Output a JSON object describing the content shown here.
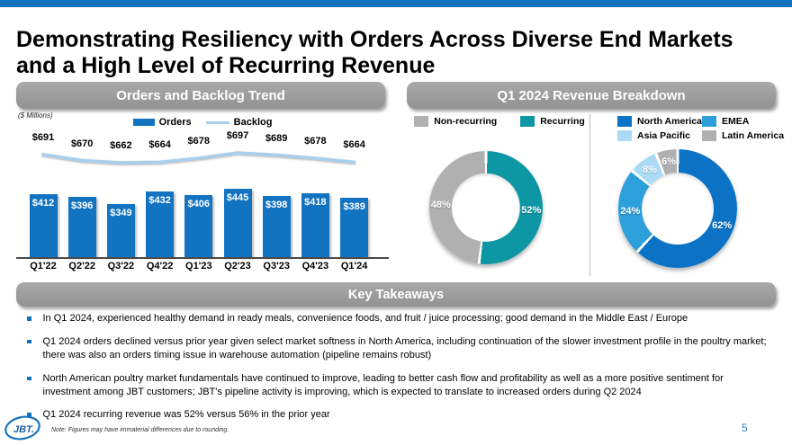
{
  "slide": {
    "title": "Demonstrating Resiliency with Orders Across Diverse End Markets and a High Level of Recurring Revenue",
    "page_number": "5",
    "footnote": "Note: Figures may have immaterial differences due to rounding.",
    "logo_text": "JBT.",
    "accent_color": "#1273c0"
  },
  "orders_panel": {
    "header": "Orders and Backlog Trend",
    "units_label": "($ Millions)",
    "legend": [
      {
        "label": "Orders",
        "type": "bar",
        "color": "#1273c0"
      },
      {
        "label": "Backlog",
        "type": "line",
        "color": "#a8d0ec"
      }
    ]
  },
  "revenue_panel": {
    "header": "Q1 2024 Revenue Breakdown",
    "legend_recurring": [
      {
        "label": "Non-recurring",
        "color": "#b0b0b0"
      },
      {
        "label": "Recurring",
        "color": "#0d96a3"
      }
    ],
    "legend_region": [
      {
        "label": "North America",
        "color": "#0b72c6"
      },
      {
        "label": "EMEA",
        "color": "#2d9fdb"
      },
      {
        "label": "Asia Pacific",
        "color": "#abdbf4"
      },
      {
        "label": "Latin America",
        "color": "#b0b0b0"
      }
    ]
  },
  "takeaways": {
    "header": "Key Takeaways",
    "bullets": [
      "In Q1 2024, experienced healthy demand in ready meals, convenience foods, and fruit / juice processing; good demand in the Middle East / Europe",
      "Q1 2024 orders declined versus prior year given select market softness in North America, including continuation of the slower investment profile in the poultry market; there was also an orders timing issue in warehouse automation (pipeline remains robust)",
      "North American poultry market fundamentals have continued to improve, leading to better cash flow and profitability as well as a more positive sentiment for investment among JBT customers; JBT's pipeline activity is improving, which is expected to translate to increased orders during Q2 2024",
      "Q1 2024 recurring revenue was 52% versus 56% in the prior year"
    ]
  },
  "chart_data": [
    {
      "id": "orders_backlog",
      "type": "bar",
      "title": "Orders and Backlog Trend",
      "units": "$ Millions",
      "categories": [
        "Q1'22",
        "Q2'22",
        "Q3'22",
        "Q4'22",
        "Q1'23",
        "Q2'23",
        "Q3'23",
        "Q4'23",
        "Q1'24"
      ],
      "series": [
        {
          "name": "Orders",
          "type": "bar",
          "color": "#1273c0",
          "values": [
            412,
            396,
            349,
            432,
            406,
            445,
            398,
            418,
            389
          ],
          "labels": [
            "$412",
            "$396",
            "$349",
            "$432",
            "$406",
            "$445",
            "$398",
            "$418",
            "$389"
          ]
        },
        {
          "name": "Backlog",
          "type": "line",
          "color": "#a8d0ec",
          "values": [
            691,
            670,
            662,
            664,
            678,
            697,
            689,
            678,
            664
          ],
          "labels": [
            "$691",
            "$670",
            "$662",
            "$664",
            "$678",
            "$697",
            "$689",
            "$678",
            "$664"
          ]
        }
      ],
      "ylim": [
        0,
        500
      ],
      "grid": false,
      "legend_position": "top"
    },
    {
      "id": "recurring_split",
      "type": "pie",
      "title": "Q1 2024 Revenue Breakdown - Recurring vs Non-recurring",
      "slices": [
        {
          "label": "Recurring",
          "value": 52,
          "display": "52%",
          "color": "#0d96a3"
        },
        {
          "label": "Non-recurring",
          "value": 48,
          "display": "48%",
          "color": "#b0b0b0"
        }
      ],
      "donut": true,
      "start_angle_deg": 0,
      "direction": "clockwise"
    },
    {
      "id": "region_split",
      "type": "pie",
      "title": "Q1 2024 Revenue Breakdown - By Region",
      "slices": [
        {
          "label": "North America",
          "value": 62,
          "display": "62%",
          "color": "#0b72c6"
        },
        {
          "label": "EMEA",
          "value": 24,
          "display": "24%",
          "color": "#2d9fdb"
        },
        {
          "label": "Asia Pacific",
          "value": 8,
          "display": "8%",
          "color": "#abdbf4"
        },
        {
          "label": "Latin America",
          "value": 6,
          "display": "6%",
          "color": "#b0b0b0"
        }
      ],
      "donut": true,
      "start_angle_deg": 0,
      "direction": "clockwise"
    }
  ]
}
